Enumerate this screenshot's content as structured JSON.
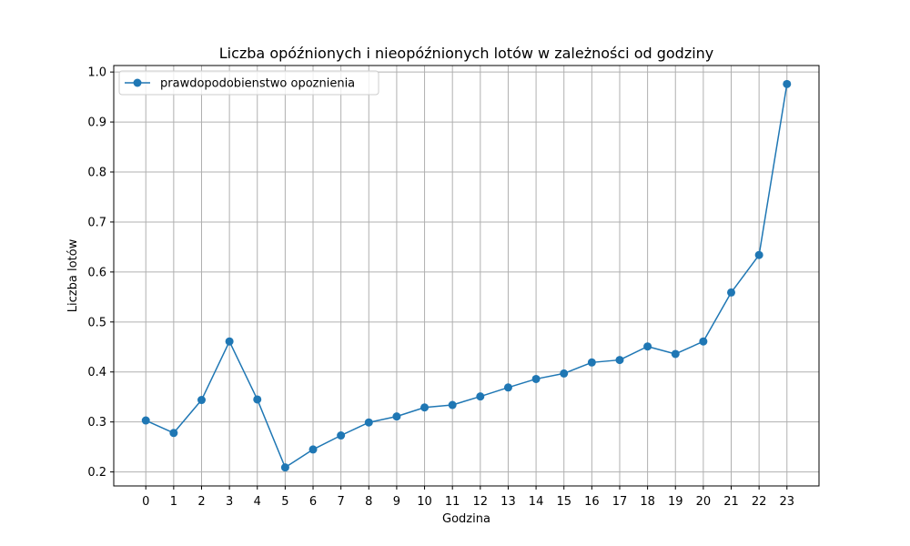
{
  "chart_data": {
    "type": "line",
    "title": "Liczba opóźnionych i nieopóźnionych lotów w zależności od godziny",
    "xlabel": "Godzina",
    "ylabel": "Liczba lotów",
    "x": [
      0,
      1,
      2,
      3,
      4,
      5,
      6,
      7,
      8,
      9,
      10,
      11,
      12,
      13,
      14,
      15,
      16,
      17,
      18,
      19,
      20,
      21,
      22,
      23
    ],
    "series": [
      {
        "name": "prawdopodobienstwo opoznienia",
        "color": "#1f77b4",
        "marker": "circle",
        "values": [
          0.303,
          0.278,
          0.344,
          0.461,
          0.345,
          0.209,
          0.245,
          0.273,
          0.299,
          0.311,
          0.329,
          0.334,
          0.351,
          0.369,
          0.386,
          0.397,
          0.419,
          0.424,
          0.451,
          0.436,
          0.461,
          0.559,
          0.634,
          0.976
        ]
      }
    ],
    "xlim": [
      -1.15,
      24.15
    ],
    "ylim": [
      0.172,
      1.013
    ],
    "xticks": [
      0,
      1,
      2,
      3,
      4,
      5,
      6,
      7,
      8,
      9,
      10,
      11,
      12,
      13,
      14,
      15,
      16,
      17,
      18,
      19,
      20,
      21,
      22,
      23
    ],
    "yticks": [
      0.2,
      0.3,
      0.4,
      0.5,
      0.6,
      0.7,
      0.8,
      0.9,
      1.0
    ],
    "ytick_labels": [
      "0.2",
      "0.3",
      "0.4",
      "0.5",
      "0.6",
      "0.7",
      "0.8",
      "0.9",
      "1.0"
    ],
    "grid": true,
    "grid_color": "#b0b0b0",
    "legend_position": "top-left"
  }
}
